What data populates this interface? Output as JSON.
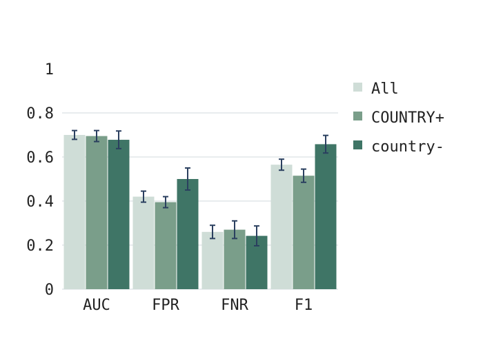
{
  "chart_data": {
    "type": "bar",
    "title": "",
    "xlabel": "",
    "ylabel": "",
    "categories": [
      "AUC",
      "FPR",
      "FNR",
      "F1"
    ],
    "series": [
      {
        "name": "All",
        "color": "#cfddd7",
        "values": [
          0.7,
          0.42,
          0.26,
          0.565
        ],
        "error": [
          0.02,
          0.025,
          0.03,
          0.025
        ]
      },
      {
        "name": "COUNTRY+",
        "color": "#7a9e8a",
        "values": [
          0.695,
          0.395,
          0.27,
          0.515
        ],
        "error": [
          0.025,
          0.025,
          0.04,
          0.03
        ]
      },
      {
        "name": "country-",
        "color": "#3f7566",
        "values": [
          0.678,
          0.5,
          0.242,
          0.658
        ],
        "error": [
          0.04,
          0.05,
          0.045,
          0.04
        ]
      }
    ],
    "ylim": [
      0,
      1
    ],
    "yticks": [
      {
        "value": 0,
        "label": "0"
      },
      {
        "value": 0.2,
        "label": "0.2"
      },
      {
        "value": 0.4,
        "label": "0.4"
      },
      {
        "value": 0.6,
        "label": "0.6"
      },
      {
        "value": 0.8,
        "label": "0.8"
      },
      {
        "value": 1,
        "label": "1"
      }
    ],
    "grid": true,
    "legend_position": "right",
    "colors": {
      "grid": "#e8ecee",
      "error_bar": "#2a3f5f"
    }
  }
}
